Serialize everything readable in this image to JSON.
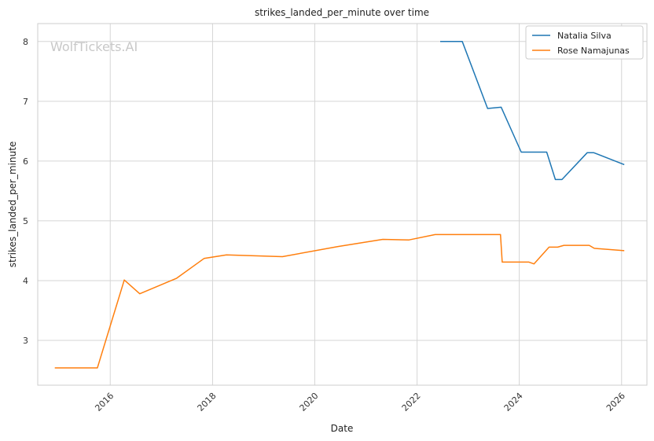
{
  "chart_data": {
    "type": "line",
    "title": "strikes_landed_per_minute over time",
    "xlabel": "Date",
    "ylabel": "strikes_landed_per_minute",
    "watermark": "WolfTickets.AI",
    "xlim": [
      "2014-08-01",
      "2026-07-01"
    ],
    "ylim": [
      2.25,
      8.3
    ],
    "x_ticks": [
      "2016",
      "2018",
      "2020",
      "2022",
      "2024",
      "2026"
    ],
    "y_ticks": [
      3,
      4,
      5,
      6,
      7,
      8
    ],
    "grid": true,
    "legend_position": "top-right",
    "series": [
      {
        "name": "Natalia Silva",
        "color": "#1f77b4",
        "points": [
          [
            "2022-06-15",
            8.0
          ],
          [
            "2022-11-20",
            8.0
          ],
          [
            "2023-05-20",
            6.88
          ],
          [
            "2023-08-25",
            6.9
          ],
          [
            "2024-01-15",
            6.15
          ],
          [
            "2024-07-15",
            6.15
          ],
          [
            "2024-09-15",
            5.69
          ],
          [
            "2024-11-01",
            5.69
          ],
          [
            "2025-05-01",
            6.14
          ],
          [
            "2025-06-15",
            6.14
          ],
          [
            "2026-01-20",
            5.94
          ]
        ]
      },
      {
        "name": "Rose Namajunas",
        "color": "#ff7f0e",
        "points": [
          [
            "2014-12-01",
            2.54
          ],
          [
            "2015-10-01",
            2.54
          ],
          [
            "2016-04-10",
            4.01
          ],
          [
            "2016-07-30",
            3.78
          ],
          [
            "2017-04-20",
            4.04
          ],
          [
            "2017-11-01",
            4.37
          ],
          [
            "2018-04-10",
            4.43
          ],
          [
            "2019-05-15",
            4.4
          ],
          [
            "2020-06-15",
            4.57
          ],
          [
            "2021-05-01",
            4.69
          ],
          [
            "2021-11-05",
            4.68
          ],
          [
            "2022-05-10",
            4.77
          ],
          [
            "2023-08-20",
            4.77
          ],
          [
            "2023-09-01",
            4.31
          ],
          [
            "2024-03-10",
            4.31
          ],
          [
            "2024-04-15",
            4.28
          ],
          [
            "2024-08-01",
            4.56
          ],
          [
            "2024-10-01",
            4.56
          ],
          [
            "2024-11-15",
            4.59
          ],
          [
            "2025-05-15",
            4.59
          ],
          [
            "2025-06-20",
            4.54
          ],
          [
            "2026-01-20",
            4.5
          ]
        ]
      }
    ]
  }
}
